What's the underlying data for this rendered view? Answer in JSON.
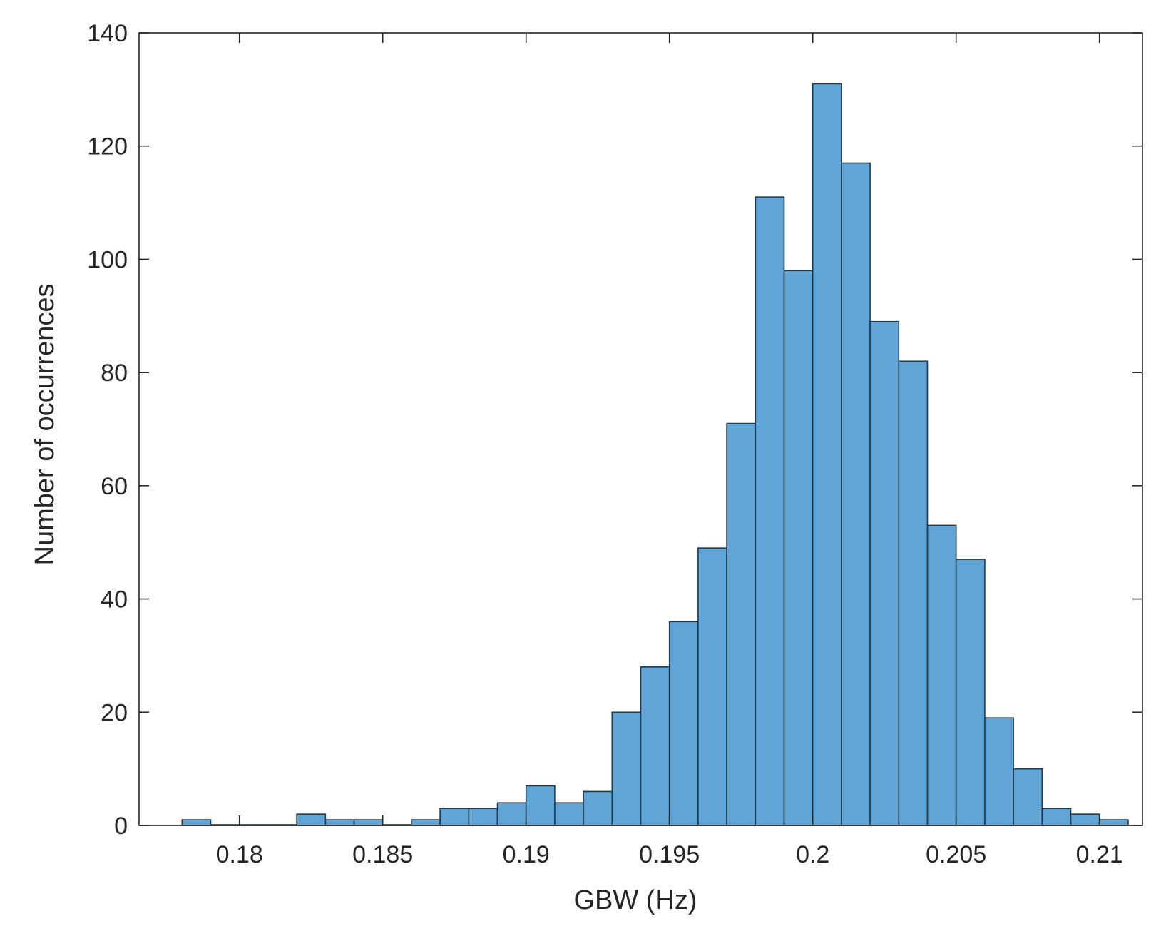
{
  "chart_data": {
    "type": "bar",
    "title": "",
    "xlabel": "GBW  (Hz)",
    "ylabel": "Number of occurrences",
    "xlim": [
      0.1765,
      0.2115
    ],
    "ylim": [
      0,
      140
    ],
    "x_ticks": [
      {
        "value": 0.18,
        "label": "0.18"
      },
      {
        "value": 0.185,
        "label": "0.185"
      },
      {
        "value": 0.19,
        "label": "0.19"
      },
      {
        "value": 0.195,
        "label": "0.195"
      },
      {
        "value": 0.2,
        "label": "0.2"
      },
      {
        "value": 0.205,
        "label": "0.205"
      },
      {
        "value": 0.21,
        "label": "0.21"
      }
    ],
    "y_ticks": [
      {
        "value": 0,
        "label": "0"
      },
      {
        "value": 20,
        "label": "20"
      },
      {
        "value": 40,
        "label": "40"
      },
      {
        "value": 60,
        "label": "60"
      },
      {
        "value": 80,
        "label": "80"
      },
      {
        "value": 100,
        "label": "100"
      },
      {
        "value": 120,
        "label": "120"
      },
      {
        "value": 140,
        "label": "140"
      }
    ],
    "bin_start": 0.178,
    "bin_width": 0.001,
    "values": [
      1,
      0,
      0,
      0,
      2,
      1,
      1,
      0,
      1,
      3,
      3,
      4,
      7,
      4,
      6,
      20,
      28,
      36,
      49,
      71,
      111,
      98,
      131,
      117,
      89,
      82,
      53,
      47,
      19,
      10,
      3,
      2,
      1
    ],
    "grid": false,
    "legend": "none",
    "colors": {
      "bar_fill": "#61a5d6",
      "bar_edge": "#1f3a4d",
      "axis": "#262626"
    }
  }
}
